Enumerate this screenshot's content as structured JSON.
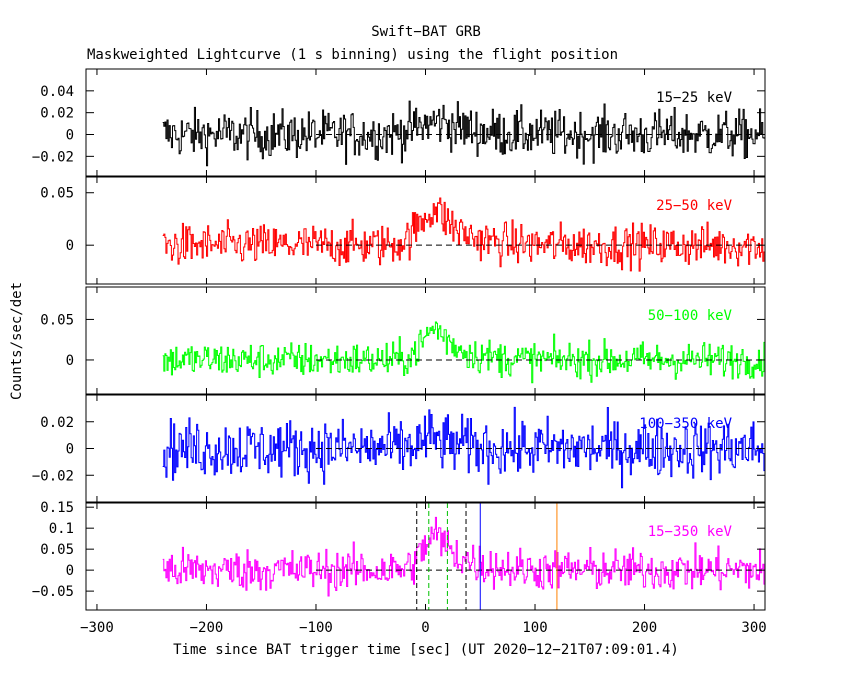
{
  "chart_data": {
    "type": "line",
    "title": "Swift−BAT GRB",
    "subtitle": "Maskweighted Lightcurve (1 s binning) using the flight position",
    "xlabel": "Time since BAT trigger time [sec] (UT 2020−12−21T07:09:01.4)",
    "ylabel": "Counts/sec/det",
    "xlim": [
      -310,
      310
    ],
    "x_ticks": [
      -300,
      -200,
      -100,
      0,
      100,
      200,
      300
    ],
    "x_tick_labels": [
      "−300",
      "−200",
      "−100",
      "0",
      "100",
      "200",
      "300"
    ],
    "data_range": [
      -240,
      310
    ],
    "panels": [
      {
        "band": "15−25 keV",
        "color": "#000000",
        "ylim": [
          -0.038,
          0.06
        ],
        "y_ticks": [
          -0.02,
          0,
          0.02,
          0.04
        ],
        "y_tick_labels": [
          "−0.02",
          "0",
          "0.02",
          "0.04"
        ],
        "noise_sigma": 0.011,
        "pulse": [
          {
            "t0": 15,
            "amp": 0.012,
            "rise": 20,
            "decay": 25
          }
        ]
      },
      {
        "band": "25−50 keV",
        "color": "#ff0000",
        "ylim": [
          -0.037,
          0.065
        ],
        "y_ticks": [
          0,
          0.05
        ],
        "y_tick_labels": [
          "0",
          "0.05"
        ],
        "noise_sigma": 0.01,
        "pulse": [
          {
            "t0": 10,
            "amp": 0.035,
            "rise": 15,
            "decay": 22
          }
        ]
      },
      {
        "band": "50−100 keV",
        "color": "#00ff00",
        "ylim": [
          -0.042,
          0.09
        ],
        "y_ticks": [
          0,
          0.05
        ],
        "y_tick_labels": [
          "0",
          "0.05"
        ],
        "noise_sigma": 0.011,
        "pulse": [
          {
            "t0": 10,
            "amp": 0.04,
            "rise": 12,
            "decay": 20
          }
        ]
      },
      {
        "band": "100−350 keV",
        "color": "#0000ff",
        "ylim": [
          -0.04,
          0.04
        ],
        "y_ticks": [
          -0.02,
          0,
          0.02
        ],
        "y_tick_labels": [
          "−0.02",
          "0",
          "0.02"
        ],
        "noise_sigma": 0.011,
        "pulse": [
          {
            "t0": 5,
            "amp": 0.008,
            "rise": 10,
            "decay": 20
          }
        ]
      },
      {
        "band": "15−350 keV",
        "color": "#ff00ff",
        "ylim": [
          -0.095,
          0.16
        ],
        "y_ticks": [
          -0.05,
          0,
          0.05,
          0.1,
          0.15
        ],
        "y_tick_labels": [
          "−0.05",
          "0",
          "0.05",
          "0.1",
          "0.15"
        ],
        "noise_sigma": 0.025,
        "pulse": [
          {
            "t0": 10,
            "amp": 0.085,
            "rise": 12,
            "decay": 22
          }
        ]
      }
    ],
    "markers": [
      {
        "x": -8,
        "color": "#000000",
        "dash": "5 3"
      },
      {
        "x": 37,
        "color": "#000000",
        "dash": "5 3"
      },
      {
        "x": 3,
        "color": "#00c000",
        "dash": "5 3"
      },
      {
        "x": 20,
        "color": "#00c000",
        "dash": "5 3"
      },
      {
        "x": 50,
        "color": "#0000ff",
        "dash": ""
      },
      {
        "x": 120,
        "color": "#ff8000",
        "dash": ""
      }
    ]
  }
}
